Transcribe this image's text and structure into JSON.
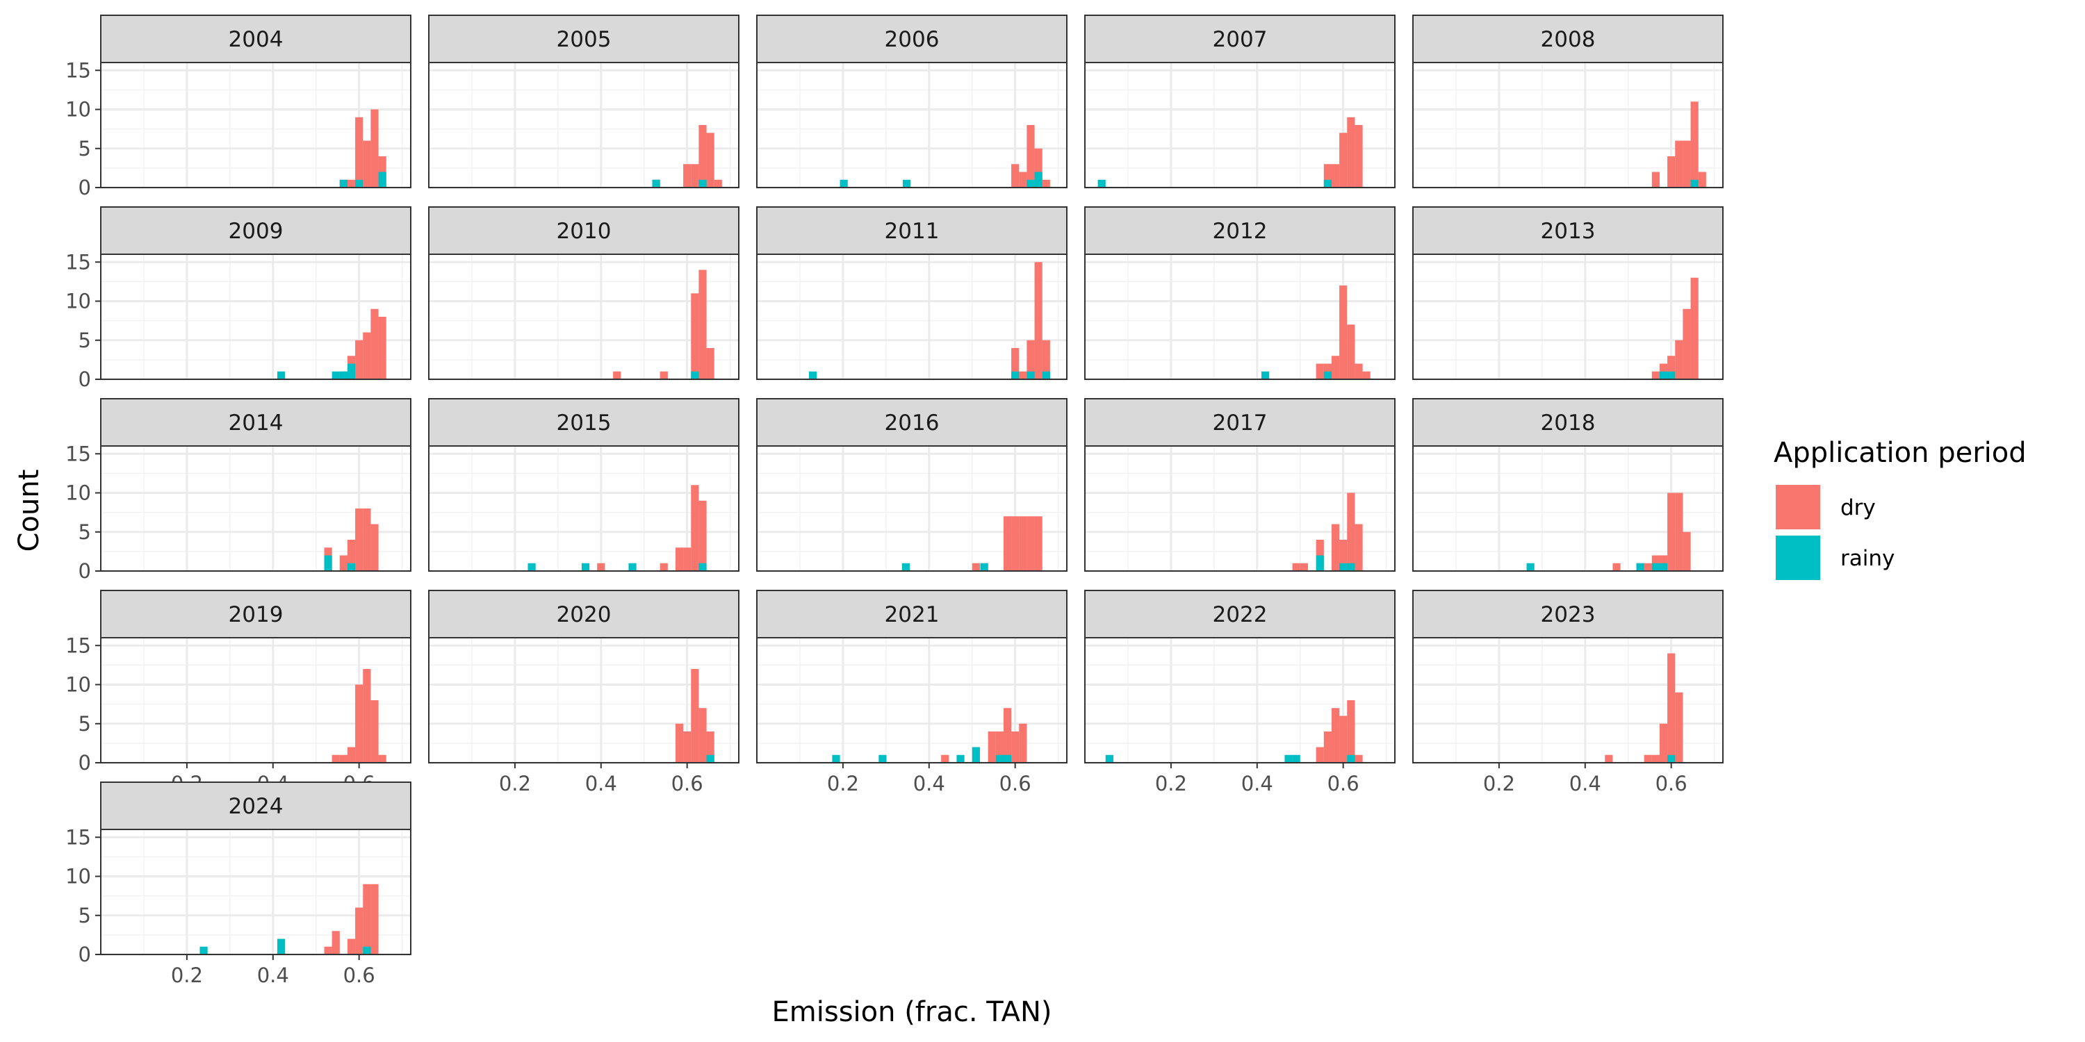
{
  "chart_data": {
    "type": "histogram-facets",
    "xlabel": "Emission (frac. TAN)",
    "ylabel": "Count",
    "xlim": [
      0.0,
      0.72
    ],
    "ylim": [
      0,
      16
    ],
    "x_ticks": [
      0.2,
      0.4,
      0.6
    ],
    "y_ticks": [
      0,
      5,
      10,
      15
    ],
    "bin_width": 0.0181,
    "grid": true,
    "legend": {
      "title": "Application period",
      "position": "right",
      "entries": [
        {
          "name": "dry",
          "color": "#F8766D"
        },
        {
          "name": "rainy",
          "color": "#00BFC4"
        }
      ]
    },
    "panels": [
      {
        "label": "2004",
        "dry": [
          [
            0.555,
            1
          ],
          [
            0.573,
            1
          ],
          [
            0.591,
            9
          ],
          [
            0.609,
            6
          ],
          [
            0.627,
            10
          ],
          [
            0.645,
            4
          ]
        ],
        "rainy": [
          [
            0.555,
            1
          ],
          [
            0.591,
            1
          ],
          [
            0.645,
            2
          ]
        ]
      },
      {
        "label": "2005",
        "dry": [
          [
            0.519,
            1
          ],
          [
            0.591,
            3
          ],
          [
            0.609,
            3
          ],
          [
            0.627,
            8
          ],
          [
            0.645,
            7
          ],
          [
            0.663,
            1
          ]
        ],
        "rainy": [
          [
            0.519,
            1
          ],
          [
            0.627,
            1
          ]
        ]
      },
      {
        "label": "2006",
        "dry": [
          [
            0.591,
            3
          ],
          [
            0.609,
            2
          ],
          [
            0.627,
            8
          ],
          [
            0.645,
            5
          ],
          [
            0.663,
            1
          ]
        ],
        "rainy": [
          [
            0.193,
            1
          ],
          [
            0.339,
            1
          ],
          [
            0.627,
            1
          ],
          [
            0.645,
            2
          ]
        ]
      },
      {
        "label": "2007",
        "dry": [
          [
            0.555,
            3
          ],
          [
            0.573,
            3
          ],
          [
            0.591,
            7
          ],
          [
            0.609,
            9
          ],
          [
            0.627,
            8
          ]
        ],
        "rainy": [
          [
            0.03,
            1
          ],
          [
            0.555,
            1
          ]
        ]
      },
      {
        "label": "2008",
        "dry": [
          [
            0.555,
            2
          ],
          [
            0.591,
            4
          ],
          [
            0.609,
            6
          ],
          [
            0.627,
            6
          ],
          [
            0.645,
            11
          ],
          [
            0.663,
            2
          ]
        ],
        "rainy": [
          [
            0.645,
            1
          ]
        ]
      },
      {
        "label": "2009",
        "dry": [
          [
            0.555,
            1
          ],
          [
            0.573,
            3
          ],
          [
            0.591,
            5
          ],
          [
            0.609,
            6
          ],
          [
            0.627,
            9
          ],
          [
            0.645,
            8
          ]
        ],
        "rainy": [
          [
            0.41,
            1
          ],
          [
            0.537,
            1
          ],
          [
            0.555,
            1
          ],
          [
            0.573,
            2
          ]
        ]
      },
      {
        "label": "2010",
        "dry": [
          [
            0.428,
            1
          ],
          [
            0.537,
            1
          ],
          [
            0.609,
            11
          ],
          [
            0.627,
            14
          ],
          [
            0.645,
            4
          ]
        ],
        "rainy": [
          [
            0.609,
            1
          ]
        ]
      },
      {
        "label": "2011",
        "dry": [
          [
            0.591,
            4
          ],
          [
            0.609,
            1
          ],
          [
            0.627,
            5
          ],
          [
            0.645,
            15
          ],
          [
            0.663,
            5
          ]
        ],
        "rainy": [
          [
            0.121,
            1
          ],
          [
            0.591,
            1
          ],
          [
            0.627,
            1
          ],
          [
            0.663,
            1
          ]
        ]
      },
      {
        "label": "2012",
        "dry": [
          [
            0.537,
            2
          ],
          [
            0.555,
            2
          ],
          [
            0.573,
            3
          ],
          [
            0.591,
            12
          ],
          [
            0.609,
            7
          ],
          [
            0.627,
            2
          ],
          [
            0.645,
            1
          ]
        ],
        "rainy": [
          [
            0.41,
            1
          ],
          [
            0.555,
            1
          ]
        ]
      },
      {
        "label": "2013",
        "dry": [
          [
            0.555,
            1
          ],
          [
            0.573,
            2
          ],
          [
            0.591,
            3
          ],
          [
            0.609,
            5
          ],
          [
            0.627,
            9
          ],
          [
            0.645,
            13
          ]
        ],
        "rainy": [
          [
            0.573,
            1
          ],
          [
            0.591,
            1
          ]
        ]
      },
      {
        "label": "2014",
        "dry": [
          [
            0.519,
            3
          ],
          [
            0.555,
            2
          ],
          [
            0.573,
            4
          ],
          [
            0.591,
            8
          ],
          [
            0.609,
            8
          ],
          [
            0.627,
            6
          ]
        ],
        "rainy": [
          [
            0.519,
            2
          ],
          [
            0.573,
            1
          ]
        ]
      },
      {
        "label": "2015",
        "dry": [
          [
            0.391,
            1
          ],
          [
            0.537,
            1
          ],
          [
            0.573,
            3
          ],
          [
            0.591,
            3
          ],
          [
            0.609,
            11
          ],
          [
            0.627,
            9
          ]
        ],
        "rainy": [
          [
            0.23,
            1
          ],
          [
            0.355,
            1
          ],
          [
            0.464,
            1
          ],
          [
            0.627,
            1
          ]
        ]
      },
      {
        "label": "2016",
        "dry": [
          [
            0.5,
            1
          ],
          [
            0.519,
            1
          ],
          [
            0.573,
            7
          ],
          [
            0.591,
            7
          ],
          [
            0.609,
            7
          ],
          [
            0.627,
            7
          ],
          [
            0.645,
            7
          ]
        ],
        "rainy": [
          [
            0.337,
            1
          ],
          [
            0.519,
            1
          ]
        ]
      },
      {
        "label": "2017",
        "dry": [
          [
            0.482,
            1
          ],
          [
            0.5,
            1
          ],
          [
            0.537,
            4
          ],
          [
            0.573,
            6
          ],
          [
            0.591,
            4
          ],
          [
            0.609,
            10
          ],
          [
            0.627,
            6
          ]
        ],
        "rainy": [
          [
            0.537,
            2
          ],
          [
            0.591,
            1
          ],
          [
            0.609,
            1
          ]
        ]
      },
      {
        "label": "2018",
        "dry": [
          [
            0.464,
            1
          ],
          [
            0.519,
            1
          ],
          [
            0.537,
            1
          ],
          [
            0.555,
            2
          ],
          [
            0.573,
            2
          ],
          [
            0.591,
            10
          ],
          [
            0.609,
            10
          ],
          [
            0.627,
            5
          ]
        ],
        "rainy": [
          [
            0.264,
            1
          ],
          [
            0.519,
            1
          ],
          [
            0.555,
            1
          ],
          [
            0.573,
            1
          ]
        ]
      },
      {
        "label": "2019",
        "dry": [
          [
            0.537,
            1
          ],
          [
            0.555,
            1
          ],
          [
            0.573,
            2
          ],
          [
            0.591,
            10
          ],
          [
            0.609,
            12
          ],
          [
            0.627,
            8
          ],
          [
            0.645,
            1
          ]
        ],
        "rainy": []
      },
      {
        "label": "2020",
        "dry": [
          [
            0.573,
            5
          ],
          [
            0.591,
            4
          ],
          [
            0.609,
            12
          ],
          [
            0.627,
            7
          ],
          [
            0.645,
            4
          ]
        ],
        "rainy": [
          [
            0.645,
            1
          ]
        ]
      },
      {
        "label": "2021",
        "dry": [
          [
            0.428,
            1
          ],
          [
            0.537,
            4
          ],
          [
            0.555,
            4
          ],
          [
            0.573,
            7
          ],
          [
            0.591,
            4
          ],
          [
            0.609,
            5
          ]
        ],
        "rainy": [
          [
            0.175,
            1
          ],
          [
            0.283,
            1
          ],
          [
            0.464,
            1
          ],
          [
            0.5,
            2
          ],
          [
            0.555,
            1
          ],
          [
            0.573,
            1
          ]
        ]
      },
      {
        "label": "2022",
        "dry": [
          [
            0.537,
            2
          ],
          [
            0.555,
            4
          ],
          [
            0.573,
            7
          ],
          [
            0.591,
            6
          ],
          [
            0.609,
            8
          ],
          [
            0.627,
            1
          ]
        ],
        "rainy": [
          [
            0.048,
            1
          ],
          [
            0.464,
            1
          ],
          [
            0.482,
            1
          ],
          [
            0.609,
            1
          ]
        ]
      },
      {
        "label": "2023",
        "dry": [
          [
            0.446,
            1
          ],
          [
            0.537,
            1
          ],
          [
            0.555,
            1
          ],
          [
            0.573,
            5
          ],
          [
            0.591,
            14
          ],
          [
            0.609,
            9
          ]
        ],
        "rainy": [
          [
            0.591,
            1
          ]
        ]
      },
      {
        "label": "2024",
        "dry": [
          [
            0.519,
            1
          ],
          [
            0.537,
            3
          ],
          [
            0.573,
            2
          ],
          [
            0.591,
            6
          ],
          [
            0.609,
            9
          ],
          [
            0.627,
            9
          ]
        ],
        "rainy": [
          [
            0.23,
            1
          ],
          [
            0.41,
            2
          ],
          [
            0.609,
            1
          ]
        ]
      }
    ]
  }
}
